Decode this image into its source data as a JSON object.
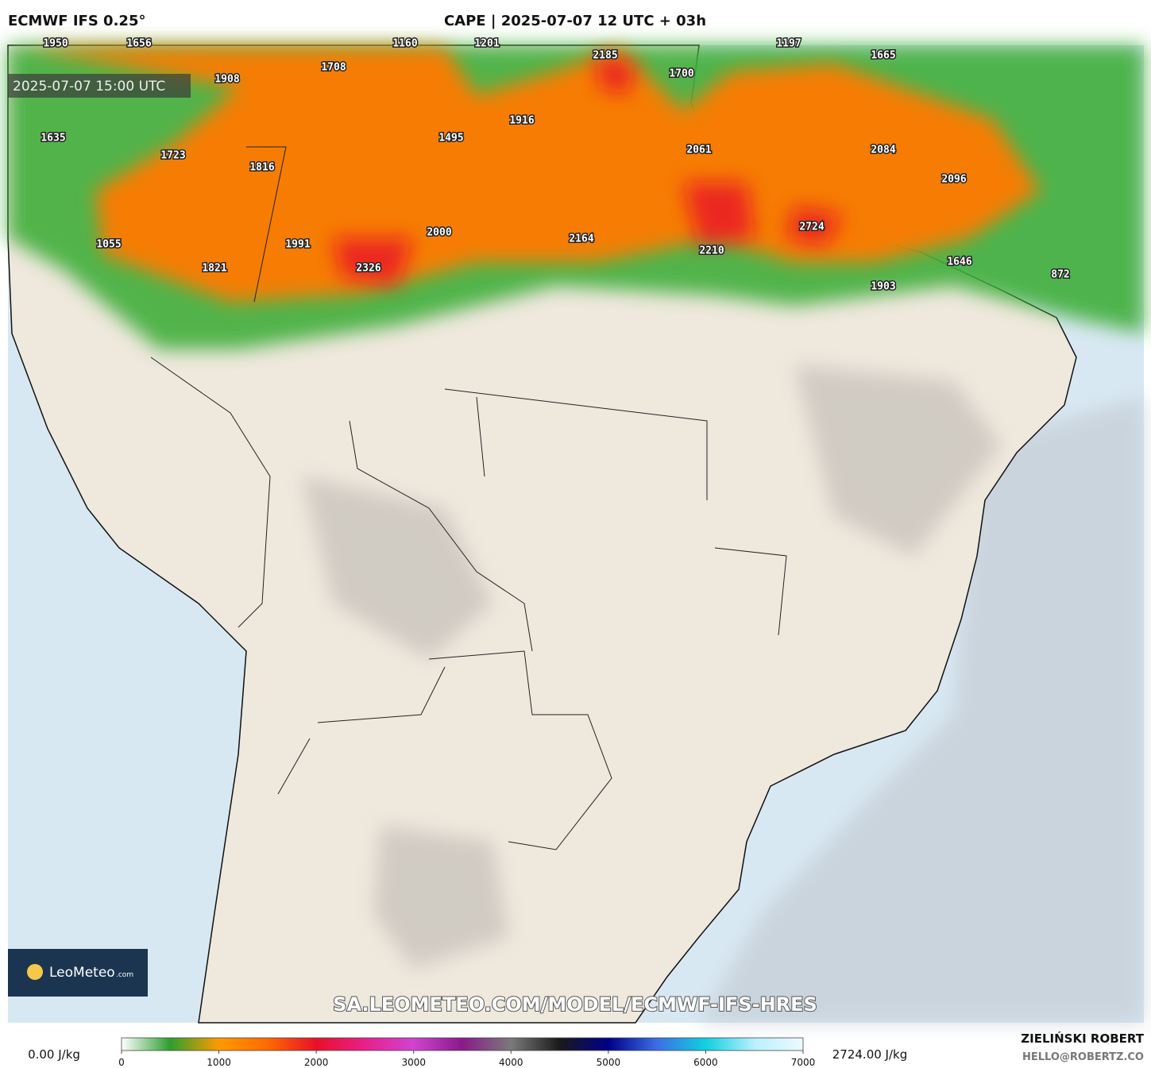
{
  "header": {
    "model": "ECMWF IFS 0.25°",
    "title": "CAPE | 2025-07-07 12 UTC + 03h"
  },
  "map": {
    "valid_time": "2025-07-07 15:00 UTC",
    "point_values": [
      1950,
      1656,
      1160,
      1201,
      1197,
      1708,
      1908,
      2185,
      1665,
      1700,
      1916,
      1495,
      1635,
      2061,
      1723,
      1816,
      2084,
      2096,
      2724,
      2000,
      2164,
      1055,
      1991,
      2210,
      1821,
      2326,
      1646,
      872,
      1903
    ],
    "watermark": "SA.LEOMETEO.COM/MODEL/ECMWF-IFS-HRES",
    "logo": {
      "name": "LeoMeteo",
      "suffix": ".com"
    }
  },
  "colorbar": {
    "range": [
      0,
      7000
    ],
    "ticks": [
      0,
      1000,
      2000,
      3000,
      4000,
      5000,
      6000,
      7000
    ],
    "colors": [
      "#ffffff",
      "#2e9e2e",
      "#ff9a00",
      "#ff6a00",
      "#e8102a",
      "#e8208a",
      "#d044d0",
      "#8a1a8a",
      "#7a7a7a",
      "#1a1a1a",
      "#00008a",
      "#3c6ee6",
      "#10d0e0",
      "#b8f0ff",
      "#eefaff"
    ],
    "min_label": "0.00 J/kg",
    "max_label": "2724.00 J/kg"
  },
  "footer": {
    "author": "ZIELIŃSKI ROBERT",
    "contact": "HELLO@ROBERTZ.CO"
  }
}
